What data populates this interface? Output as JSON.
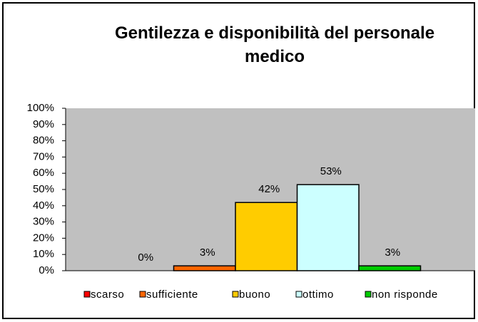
{
  "chart_data": {
    "type": "bar",
    "title": "Gentilezza e disponibilità del personale medico",
    "categories": [
      "scarso",
      "sufficiente",
      "buono",
      "ottimo",
      "non risponde"
    ],
    "values": [
      0,
      3,
      42,
      53,
      3
    ],
    "value_labels": [
      "0%",
      "3%",
      "42%",
      "53%",
      "3%"
    ],
    "colors": [
      "#ff0000",
      "#ff6600",
      "#ffcc00",
      "#ccffff",
      "#00cc00"
    ],
    "ylim": [
      0,
      100
    ],
    "yticks": [
      {
        "value": 0,
        "label": "0%"
      },
      {
        "value": 10,
        "label": "10%"
      },
      {
        "value": 20,
        "label": "20%"
      },
      {
        "value": 30,
        "label": "30%"
      },
      {
        "value": 40,
        "label": "40%"
      },
      {
        "value": 50,
        "label": "50%"
      },
      {
        "value": 60,
        "label": "60%"
      },
      {
        "value": 70,
        "label": "70%"
      },
      {
        "value": 80,
        "label": "80%"
      },
      {
        "value": 90,
        "label": "90%"
      },
      {
        "value": 100,
        "label": "100%"
      }
    ],
    "plot_background": "#c0c0c0",
    "legend": "bottom"
  }
}
